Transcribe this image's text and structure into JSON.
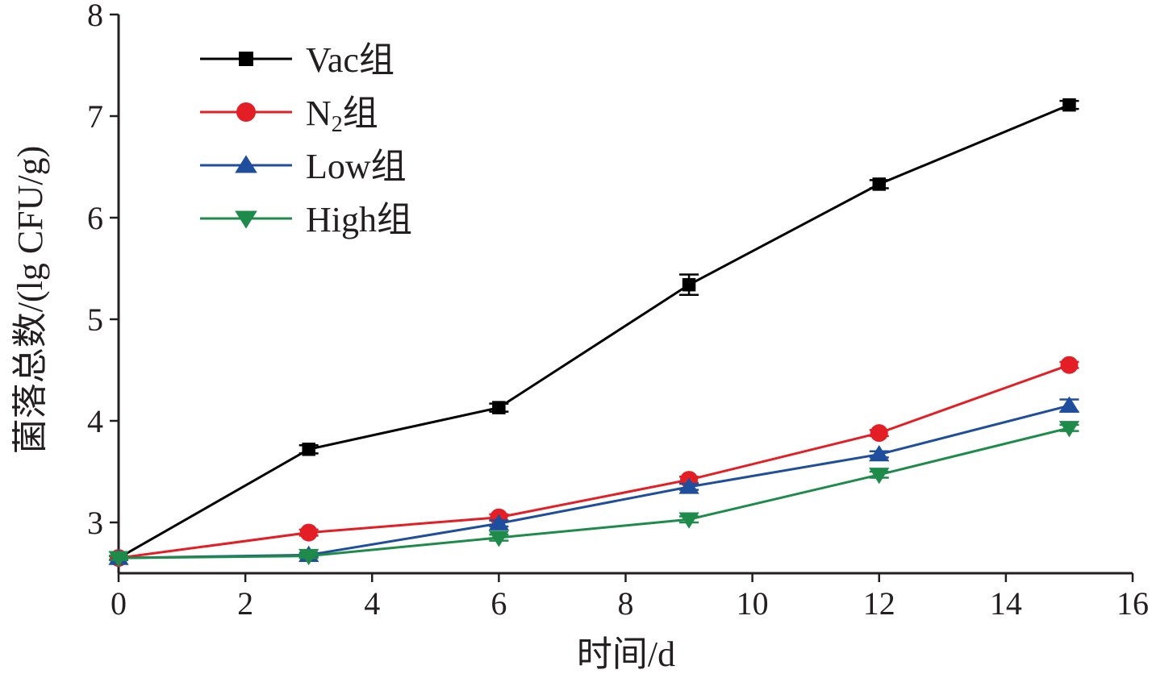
{
  "chart_data": {
    "type": "line",
    "xlabel": "时间/d",
    "ylabel": "菌落总数/(lg CFU/g)",
    "xlim": [
      0,
      16
    ],
    "ylim": [
      2.5,
      8
    ],
    "xticks": [
      0,
      2,
      4,
      6,
      8,
      10,
      12,
      14,
      16
    ],
    "yticks": [
      3,
      4,
      5,
      6,
      7,
      8
    ],
    "grid": false,
    "legend_position": "top-left",
    "x": [
      0,
      3,
      6,
      9,
      12,
      15
    ],
    "series": [
      {
        "name": "Vac组",
        "legend_main": "Vac",
        "legend_sub": "",
        "legend_suffix": "组",
        "color": "#000000",
        "marker": "square",
        "values": [
          2.65,
          3.72,
          4.13,
          5.34,
          6.33,
          7.11
        ],
        "errors": [
          0.02,
          0.04,
          0.04,
          0.1,
          0.04,
          0.04
        ]
      },
      {
        "name": "N2组",
        "legend_main": "N",
        "legend_sub": "2",
        "legend_suffix": "组",
        "color": "#e31e24",
        "marker": "circle",
        "values": [
          2.65,
          2.9,
          3.05,
          3.42,
          3.88,
          4.55
        ],
        "errors": [
          0.02,
          0.03,
          0.03,
          0.03,
          0.03,
          0.03
        ]
      },
      {
        "name": "Low组",
        "legend_main": "Low",
        "legend_sub": "",
        "legend_suffix": "组",
        "color": "#1f4e9c",
        "marker": "triangle-up",
        "values": [
          2.65,
          2.68,
          2.99,
          3.35,
          3.67,
          4.15
        ],
        "errors": [
          0.02,
          0.02,
          0.03,
          0.03,
          0.03,
          0.06
        ]
      },
      {
        "name": "High组",
        "legend_main": "High",
        "legend_sub": "",
        "legend_suffix": "组",
        "color": "#1e8b4b",
        "marker": "triangle-down",
        "values": [
          2.65,
          2.67,
          2.85,
          3.03,
          3.47,
          3.93
        ],
        "errors": [
          0.02,
          0.02,
          0.03,
          0.03,
          0.03,
          0.03
        ]
      }
    ]
  }
}
